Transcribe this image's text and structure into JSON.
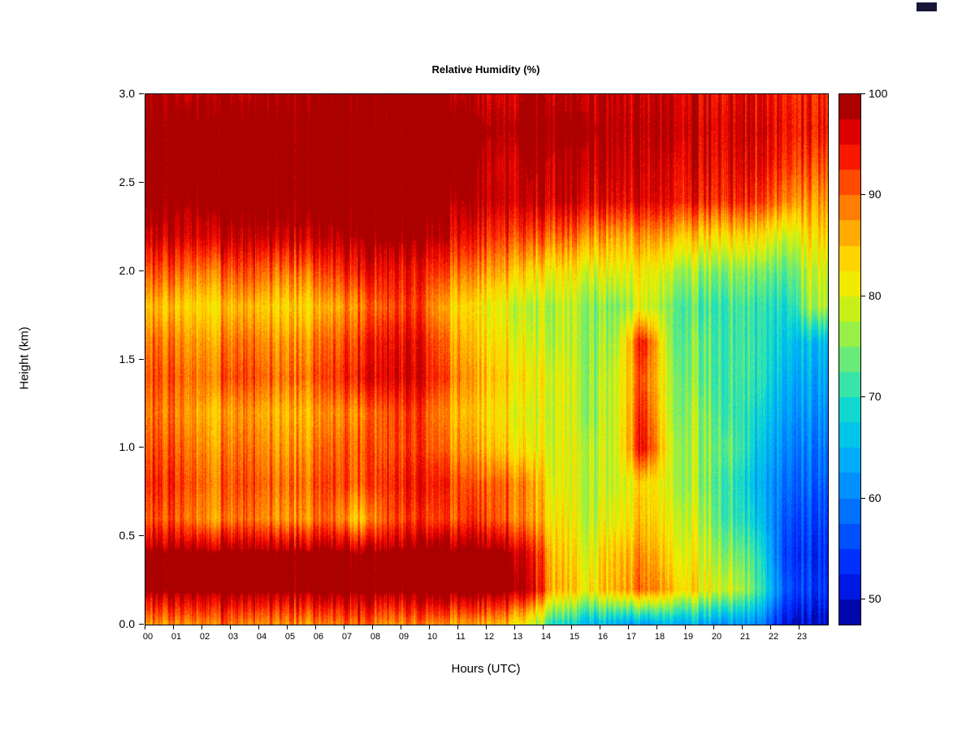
{
  "figure": {
    "background_color": "#ffffff",
    "corner_marker_color": "#161636"
  },
  "chart_data": {
    "type": "heatmap",
    "title": "Relative Humidity (%)",
    "xlabel": "Hours (UTC)",
    "ylabel": "Height (km)",
    "x_hours": [
      0,
      1,
      2,
      3,
      4,
      5,
      6,
      7,
      8,
      9,
      10,
      11,
      12,
      13,
      14,
      15,
      16,
      17,
      18,
      19,
      20,
      21,
      22,
      23
    ],
    "x_tick_labels": [
      "00",
      "01",
      "02",
      "03",
      "04",
      "05",
      "06",
      "07",
      "08",
      "09",
      "10",
      "11",
      "12",
      "13",
      "14",
      "15",
      "16",
      "17",
      "18",
      "19",
      "20",
      "21",
      "22",
      "23"
    ],
    "x_range_hours": [
      0,
      24
    ],
    "heights_km": [
      0.0,
      0.2,
      0.4,
      0.6,
      0.8,
      1.0,
      1.2,
      1.4,
      1.6,
      1.8,
      2.0,
      2.2,
      2.4,
      2.6,
      2.8,
      3.0
    ],
    "y_ticks": [
      0.0,
      0.5,
      1.0,
      1.5,
      2.0,
      2.5,
      3.0
    ],
    "y_tick_labels": [
      "0.0",
      "0.5",
      "1.0",
      "1.5",
      "2.0",
      "2.5",
      "3.0"
    ],
    "y_range_km": [
      0.0,
      3.0
    ],
    "values_percent_rows_bottom_to_top": [
      [
        88,
        88,
        90,
        88,
        88,
        88,
        88,
        90,
        88,
        88,
        86,
        86,
        85,
        80,
        68,
        65,
        63,
        62,
        64,
        63,
        62,
        60,
        52,
        50
      ],
      [
        100,
        100,
        100,
        100,
        100,
        100,
        100,
        100,
        100,
        100,
        100,
        100,
        100,
        98,
        85,
        82,
        85,
        90,
        85,
        82,
        80,
        72,
        58,
        55
      ],
      [
        100,
        100,
        100,
        100,
        100,
        100,
        100,
        99,
        100,
        100,
        100,
        100,
        100,
        96,
        84,
        80,
        84,
        88,
        82,
        80,
        76,
        70,
        56,
        54
      ],
      [
        92,
        90,
        88,
        90,
        88,
        88,
        90,
        84,
        92,
        92,
        90,
        92,
        90,
        88,
        82,
        78,
        80,
        85,
        80,
        78,
        72,
        66,
        58,
        56
      ],
      [
        94,
        92,
        90,
        92,
        90,
        90,
        92,
        90,
        94,
        94,
        92,
        90,
        90,
        88,
        80,
        78,
        78,
        84,
        78,
        76,
        72,
        64,
        60,
        58
      ],
      [
        92,
        90,
        88,
        90,
        88,
        88,
        90,
        90,
        92,
        92,
        88,
        86,
        84,
        82,
        80,
        78,
        78,
        96,
        78,
        76,
        74,
        66,
        62,
        60
      ],
      [
        90,
        88,
        86,
        88,
        86,
        86,
        88,
        88,
        92,
        92,
        86,
        84,
        82,
        80,
        80,
        76,
        78,
        94,
        76,
        76,
        72,
        68,
        64,
        62
      ],
      [
        92,
        90,
        90,
        92,
        90,
        90,
        92,
        94,
        97,
        96,
        90,
        86,
        84,
        82,
        80,
        76,
        78,
        92,
        76,
        74,
        72,
        70,
        66,
        64
      ],
      [
        90,
        88,
        88,
        90,
        88,
        88,
        90,
        92,
        96,
        95,
        88,
        84,
        82,
        80,
        78,
        76,
        76,
        95,
        74,
        74,
        72,
        70,
        68,
        66
      ],
      [
        86,
        84,
        84,
        86,
        84,
        84,
        86,
        88,
        92,
        92,
        84,
        82,
        80,
        78,
        78,
        76,
        74,
        80,
        74,
        72,
        72,
        70,
        70,
        78
      ],
      [
        92,
        90,
        90,
        92,
        90,
        90,
        92,
        94,
        96,
        94,
        90,
        88,
        86,
        84,
        82,
        80,
        80,
        82,
        78,
        76,
        76,
        74,
        74,
        80
      ],
      [
        98,
        97,
        98,
        98,
        98,
        98,
        98,
        99,
        100,
        99,
        96,
        94,
        92,
        92,
        90,
        88,
        86,
        88,
        86,
        84,
        84,
        82,
        80,
        84
      ],
      [
        100,
        99,
        100,
        100,
        100,
        100,
        100,
        100,
        100,
        100,
        99,
        98,
        97,
        98,
        97,
        96,
        95,
        96,
        95,
        94,
        94,
        92,
        90,
        88
      ],
      [
        100,
        100,
        100,
        100,
        100,
        100,
        100,
        100,
        100,
        100,
        100,
        99,
        96,
        99,
        98,
        98,
        97,
        97,
        96,
        96,
        96,
        95,
        94,
        92
      ],
      [
        100,
        100,
        100,
        100,
        100,
        100,
        100,
        100,
        100,
        100,
        100,
        100,
        98,
        100,
        99,
        99,
        98,
        98,
        98,
        97,
        97,
        96,
        96,
        95
      ],
      [
        99,
        98,
        99,
        98,
        99,
        99,
        99,
        99,
        100,
        100,
        99,
        97,
        96,
        99,
        98,
        98,
        97,
        97,
        97,
        96,
        96,
        95,
        95,
        94
      ]
    ],
    "colorbar": {
      "min": 47.5,
      "max": 100,
      "step": 2.5,
      "ticks": [
        50,
        60,
        70,
        80,
        90,
        100
      ],
      "tick_labels": [
        "50",
        "60",
        "70",
        "80",
        "90",
        "100"
      ],
      "color_stops": [
        {
          "value": 47.5,
          "color": "#00008F"
        },
        {
          "value": 52.5,
          "color": "#0020FF"
        },
        {
          "value": 57.5,
          "color": "#0060FF"
        },
        {
          "value": 62.5,
          "color": "#00A0FF"
        },
        {
          "value": 67.5,
          "color": "#00D0E0"
        },
        {
          "value": 70.0,
          "color": "#20E0C0"
        },
        {
          "value": 72.5,
          "color": "#50E890"
        },
        {
          "value": 75.0,
          "color": "#80EE60"
        },
        {
          "value": 77.5,
          "color": "#B0F030"
        },
        {
          "value": 80.0,
          "color": "#E0F000"
        },
        {
          "value": 82.5,
          "color": "#FFE600"
        },
        {
          "value": 85.0,
          "color": "#FFC000"
        },
        {
          "value": 87.5,
          "color": "#FF9600"
        },
        {
          "value": 90.0,
          "color": "#FF6400"
        },
        {
          "value": 92.5,
          "color": "#FF3000"
        },
        {
          "value": 95.0,
          "color": "#F00000"
        },
        {
          "value": 97.5,
          "color": "#C80000"
        },
        {
          "value": 100.0,
          "color": "#8B0000"
        }
      ]
    }
  }
}
